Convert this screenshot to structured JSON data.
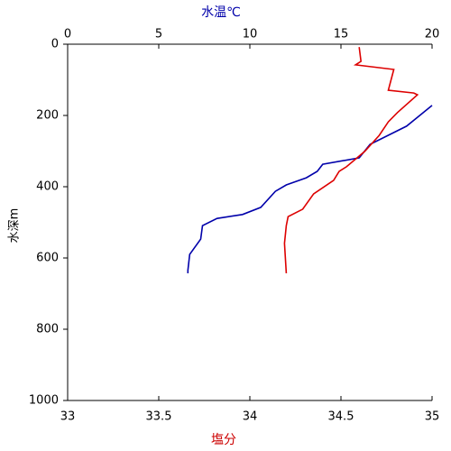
{
  "chart_data": {
    "type": "line",
    "y_label": "水深m",
    "x_top_label": "水温℃",
    "x_bottom_label": "塩分",
    "ylim": [
      0,
      1000
    ],
    "yticks": [
      0,
      200,
      400,
      600,
      800,
      1000
    ],
    "y_inverted": true,
    "x_top_lim": [
      0,
      20
    ],
    "x_top_ticks": [
      0,
      5,
      10,
      15,
      20
    ],
    "x_bottom_lim": [
      33,
      35
    ],
    "x_bottom_ticks": [
      33,
      33.5,
      34,
      34.5,
      35
    ],
    "series": [
      {
        "axis": "x_top",
        "color": "#0000aa",
        "x": [
          20,
          18.6,
          16.6,
          16.0,
          14.0,
          13.7,
          13.1,
          12.0,
          11.4,
          10.6,
          9.6,
          8.2,
          7.4,
          7.3,
          6.7,
          6.6,
          6.6
        ],
        "y": [
          172,
          230,
          281,
          319,
          337,
          357,
          375,
          395,
          413,
          458,
          478,
          489,
          509,
          547,
          590,
          635,
          643
        ]
      },
      {
        "axis": "x_bottom",
        "color": "#dd0000",
        "x": [
          34.6,
          34.61,
          34.58,
          34.79,
          34.76,
          34.9,
          34.92,
          34.81,
          34.76,
          34.71,
          34.63,
          34.53,
          34.49,
          34.46,
          34.35,
          34.29,
          34.21,
          34.2,
          34.19,
          34.2
        ],
        "y": [
          8,
          48,
          58,
          71,
          129,
          137,
          142,
          192,
          218,
          256,
          301,
          344,
          357,
          382,
          420,
          463,
          484,
          509,
          559,
          643
        ]
      }
    ]
  }
}
